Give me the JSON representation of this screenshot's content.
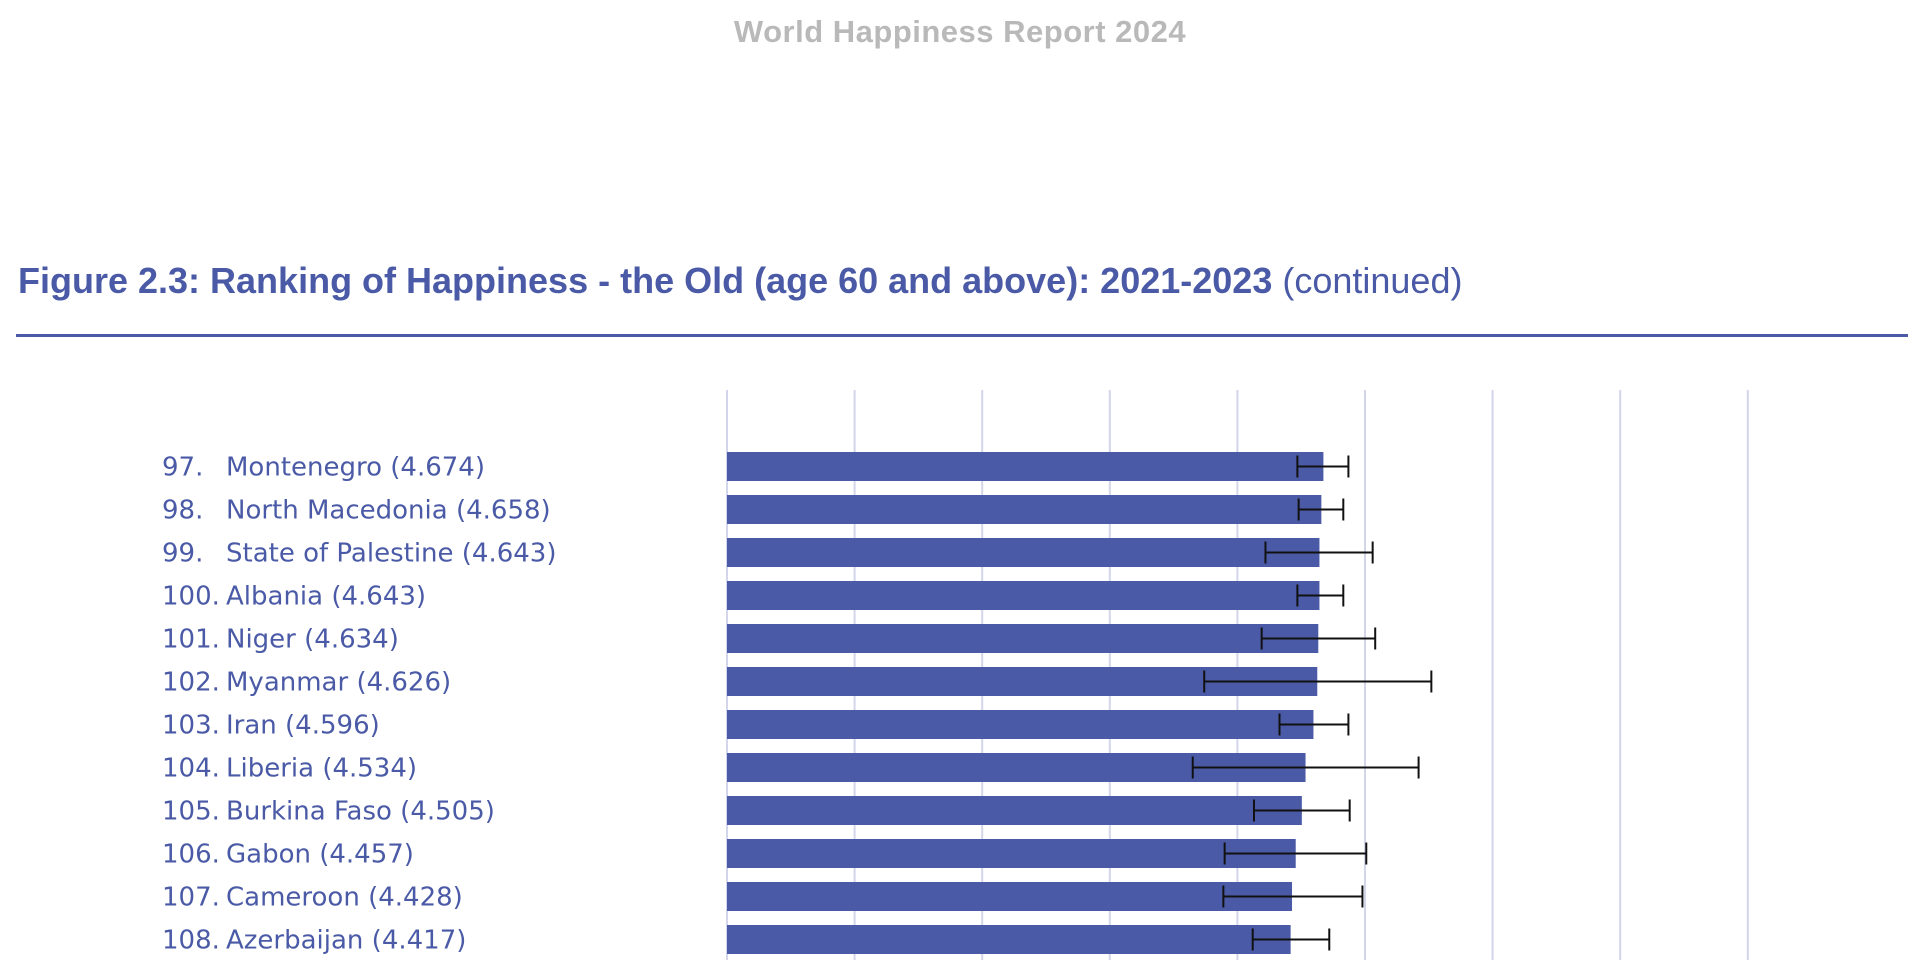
{
  "header": {
    "report_title": "World Happiness Report 2024"
  },
  "figure": {
    "title_main": "Figure 2.3: Ranking of Happiness - the Old (age 60 and above): 2021-2023",
    "title_suffix": "(continued)"
  },
  "colors": {
    "bar": "#4a5aa6",
    "label": "#4a5aa6",
    "grid": "#d3d6ea",
    "error_bar": "#111111",
    "header": "#b9b9b9"
  },
  "chart_data": {
    "type": "bar",
    "orientation": "horizontal",
    "title": "Figure 2.3: Ranking of Happiness - the Old (age 60 and above): 2021-2023 (continued)",
    "xlabel": "",
    "ylabel": "",
    "xlim": [
      0,
      8
    ],
    "grid": "vertical",
    "categories": [
      "97. Montenegro (4.674)",
      "98. North Macedonia (4.658)",
      "99. State of Palestine (4.643)",
      "100. Albania (4.643)",
      "101. Niger (4.634)",
      "102. Myanmar (4.626)",
      "103. Iran (4.596)",
      "104. Liberia (4.534)",
      "105. Burkina Faso (4.505)",
      "106. Gabon (4.457)",
      "107. Cameroon (4.428)",
      "108. Azerbaijan (4.417)"
    ],
    "rows": [
      {
        "rank": "97.",
        "country": "Montenegro",
        "score_text": "(4.674)",
        "value": 4.674,
        "ci_low": 4.47,
        "ci_high": 4.87
      },
      {
        "rank": "98.",
        "country": "North Macedonia",
        "score_text": "(4.658)",
        "value": 4.658,
        "ci_low": 4.48,
        "ci_high": 4.83
      },
      {
        "rank": "99.",
        "country": "State of Palestine",
        "score_text": "(4.643)",
        "value": 4.643,
        "ci_low": 4.22,
        "ci_high": 5.06
      },
      {
        "rank": "100.",
        "country": "Albania",
        "score_text": "(4.643)",
        "value": 4.643,
        "ci_low": 4.47,
        "ci_high": 4.83
      },
      {
        "rank": "101.",
        "country": "Niger",
        "score_text": "(4.634)",
        "value": 4.634,
        "ci_low": 4.19,
        "ci_high": 5.08
      },
      {
        "rank": "102.",
        "country": "Myanmar",
        "score_text": "(4.626)",
        "value": 4.626,
        "ci_low": 3.74,
        "ci_high": 5.52
      },
      {
        "rank": "103.",
        "country": "Iran",
        "score_text": "(4.596)",
        "value": 4.596,
        "ci_low": 4.33,
        "ci_high": 4.87
      },
      {
        "rank": "104.",
        "country": "Liberia",
        "score_text": "(4.534)",
        "value": 4.534,
        "ci_low": 3.65,
        "ci_high": 5.42
      },
      {
        "rank": "105.",
        "country": "Burkina Faso",
        "score_text": "(4.505)",
        "value": 4.505,
        "ci_low": 4.13,
        "ci_high": 4.88
      },
      {
        "rank": "106.",
        "country": "Gabon",
        "score_text": "(4.457)",
        "value": 4.457,
        "ci_low": 3.9,
        "ci_high": 5.01
      },
      {
        "rank": "107.",
        "country": "Cameroon",
        "score_text": "(4.428)",
        "value": 4.428,
        "ci_low": 3.89,
        "ci_high": 4.98
      },
      {
        "rank": "108.",
        "country": "Azerbaijan",
        "score_text": "(4.417)",
        "value": 4.417,
        "ci_low": 4.12,
        "ci_high": 4.72
      }
    ]
  }
}
